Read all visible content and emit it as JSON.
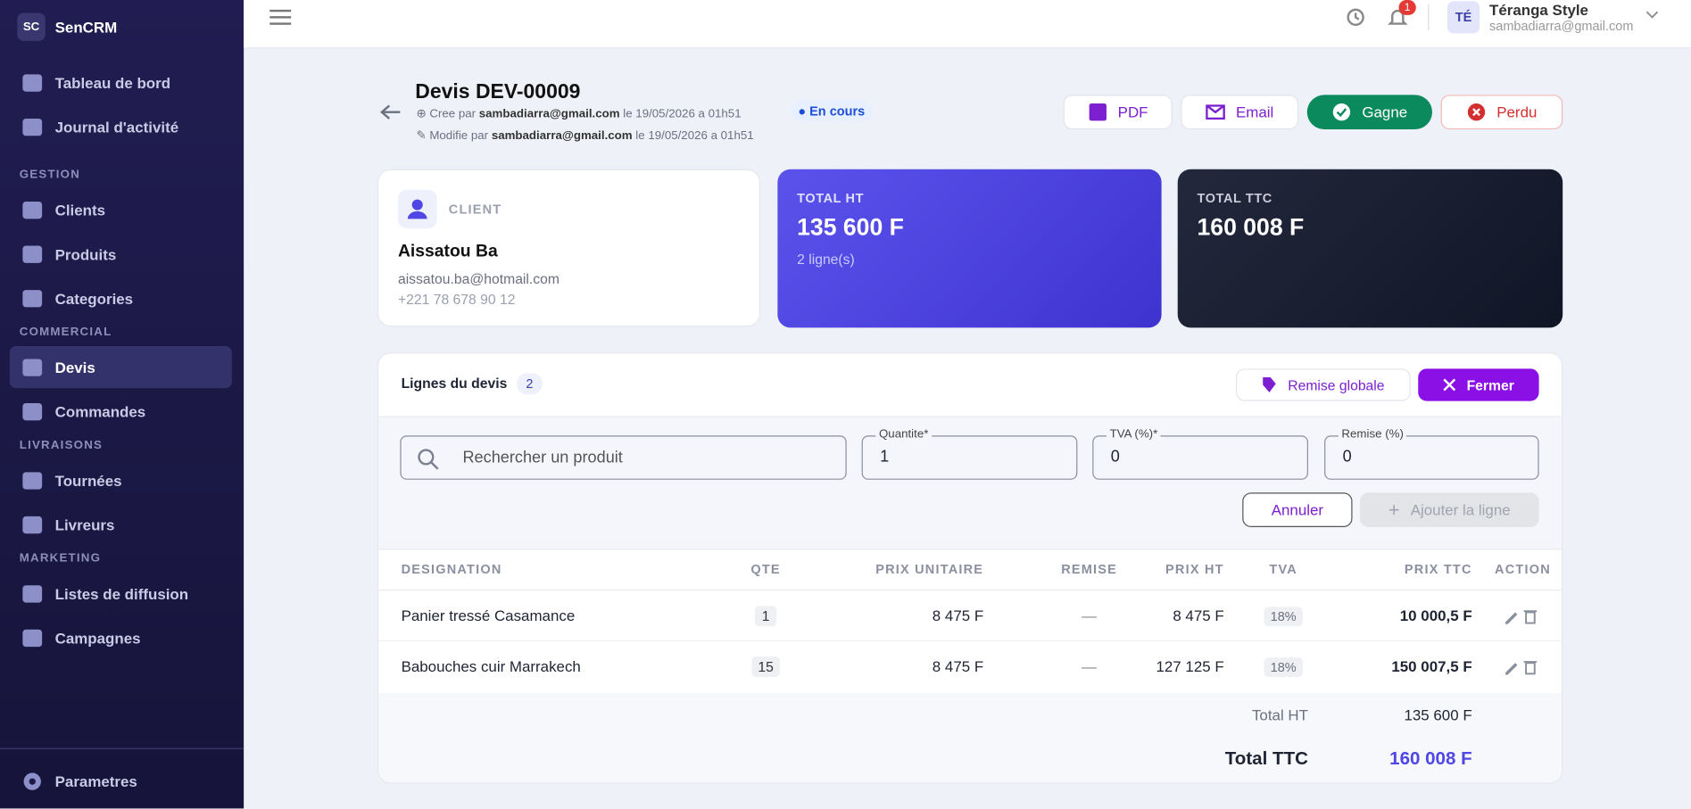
{
  "sidebar": {
    "logo": "SC",
    "brand": "SenCRM",
    "top": [
      "Tableau de bord",
      "Journal d'activité"
    ],
    "groups": [
      {
        "title": "GESTION",
        "items": [
          "Clients",
          "Produits",
          "Categories"
        ]
      },
      {
        "title": "COMMERCIAL",
        "items": [
          "Devis",
          "Commandes"
        ]
      },
      {
        "title": "LIVRAISONS",
        "items": [
          "Tournées",
          "Livreurs"
        ]
      },
      {
        "title": "MARKETING",
        "items": [
          "Listes de diffusion",
          "Campagnes"
        ]
      }
    ],
    "footer": "Parametres"
  },
  "topbar": {
    "notification_count": 1,
    "avatar": "TÉ",
    "user_name": "Téranga Style",
    "user_email": "sambadiarra@gmail.com"
  },
  "quote": {
    "title": "Devis DEV-00009",
    "created": {
      "prefix": "Cree par",
      "user": "sambadiarra@gmail.com",
      "date": "le 19/05/2026 a 01h51"
    },
    "modified": {
      "prefix": "Modifie par",
      "user": "sambadiarra@gmail.com",
      "date": "le 19/05/2026 a 01h51"
    },
    "status": "En cours",
    "actions": [
      "PDF",
      "Email",
      "Gagne",
      "Perdu"
    ]
  },
  "cards": {
    "client": {
      "label": "CLIENT",
      "name": "Aissatou Ba",
      "email": "aissatou.ba@hotmail.com",
      "phone": "+221 78 678 90 12"
    },
    "total_ht": {
      "label": "TOTAL HT",
      "amount": "135 600 F",
      "lines": "2 ligne(s)"
    },
    "total_ttc": {
      "label": "TOTAL TTC",
      "amount": "160 008 F"
    }
  },
  "lines": {
    "title": "Lignes du devis",
    "count": 2,
    "buttons": [
      "Remise globale",
      "Fermer"
    ],
    "form": {
      "search_placeholder": "Rechercher un produit",
      "fields": [
        {
          "label": "Quantite*",
          "value": "1"
        },
        {
          "label": "TVA (%)*",
          "value": "0"
        },
        {
          "label": "Remise (%)",
          "value": "0"
        }
      ],
      "cancel": "Annuler",
      "add": "Ajouter la ligne"
    },
    "table": {
      "headers": [
        "DESIGNATION",
        "QTE",
        "PRIX UNITAIRE",
        "REMISE",
        "PRIX HT",
        "TVA",
        "PRIX TTC",
        "ACTION"
      ],
      "rows": [
        [
          "Panier tressé Casamance",
          "1",
          "8 475 F",
          "—",
          "8 475 F",
          "18%",
          "10 000,5 F"
        ],
        [
          "Babouches cuir Marrakech",
          "15",
          "8 475 F",
          "—",
          "127 125 F",
          "18%",
          "150 007,5 F"
        ]
      ]
    },
    "totals": {
      "ht_label": "Total HT",
      "ht": "135 600 F",
      "ttc_label": "Total TTC",
      "ttc": "160 008 F"
    }
  }
}
